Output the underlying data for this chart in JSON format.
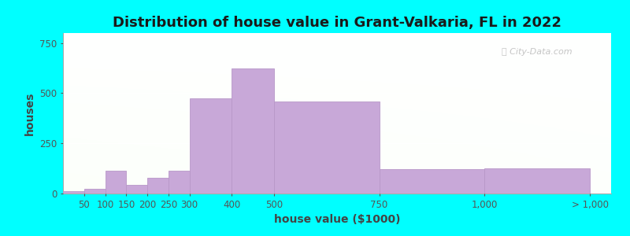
{
  "title": "Distribution of house value in Grant-Valkaria, FL in 2022",
  "xlabel": "house value ($1000)",
  "ylabel": "houses",
  "bar_color": "#c8a8d8",
  "bar_edge_color": "#b898c8",
  "background_color": "#00ffff",
  "yticks": [
    0,
    250,
    500,
    750
  ],
  "ylim": [
    0,
    800
  ],
  "values": [
    10,
    22,
    115,
    45,
    80,
    115,
    475,
    625,
    460,
    120,
    125
  ],
  "bar_lefts": [
    0,
    50,
    100,
    150,
    200,
    250,
    300,
    400,
    500,
    750,
    1000
  ],
  "bar_widths": [
    50,
    50,
    50,
    50,
    50,
    50,
    100,
    100,
    250,
    250,
    250
  ],
  "xtick_positions": [
    50,
    100,
    150,
    200,
    250,
    300,
    400,
    500,
    750,
    1000,
    1250
  ],
  "xtick_labels": [
    "50",
    "100",
    "150",
    "200",
    "250",
    "300",
    "400",
    "500",
    "750",
    "1,000",
    "> 1,000"
  ],
  "xlim": [
    0,
    1300
  ],
  "title_fontsize": 13,
  "axis_fontsize": 10,
  "tick_fontsize": 8.5
}
